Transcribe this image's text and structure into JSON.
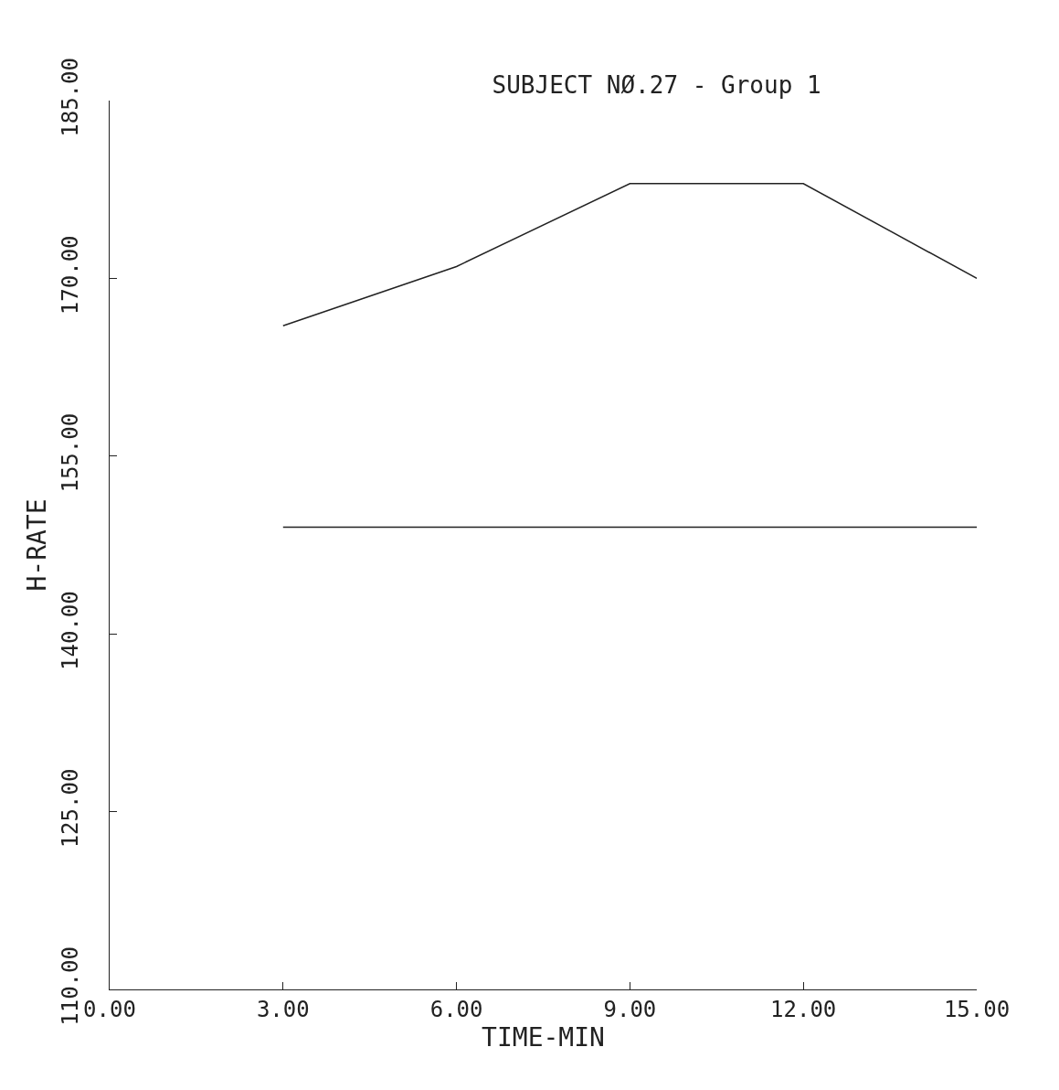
{
  "chart_data": {
    "type": "line",
    "title": "SUBJECT NØ.27 - Group 1",
    "xlabel": "TIME-MIN",
    "ylabel": "H-RATE",
    "x": [
      3,
      6,
      9,
      12,
      15
    ],
    "series": [
      {
        "color": "#222222",
        "values": [
          166,
          171,
          178,
          178,
          170
        ]
      },
      {
        "color": "#222222",
        "x": [
          3,
          15
        ],
        "values": [
          149,
          149
        ]
      }
    ],
    "xlim": [
      0,
      15
    ],
    "ylim": [
      110,
      185
    ],
    "xticks": [
      {
        "value": 0,
        "label": "0.00"
      },
      {
        "value": 3,
        "label": "3.00"
      },
      {
        "value": 6,
        "label": "6.00"
      },
      {
        "value": 9,
        "label": "9.00"
      },
      {
        "value": 12,
        "label": "12.00"
      },
      {
        "value": 15,
        "label": "15.00"
      }
    ],
    "yticks": [
      {
        "value": 110,
        "label": "110.00"
      },
      {
        "value": 125,
        "label": "125.00"
      },
      {
        "value": 140,
        "label": "140.00"
      },
      {
        "value": 155,
        "label": "155.00"
      },
      {
        "value": 170,
        "label": "170.00"
      },
      {
        "value": 185,
        "label": "185.00"
      }
    ],
    "grid": false,
    "marker": "none",
    "line_style": "solid"
  }
}
